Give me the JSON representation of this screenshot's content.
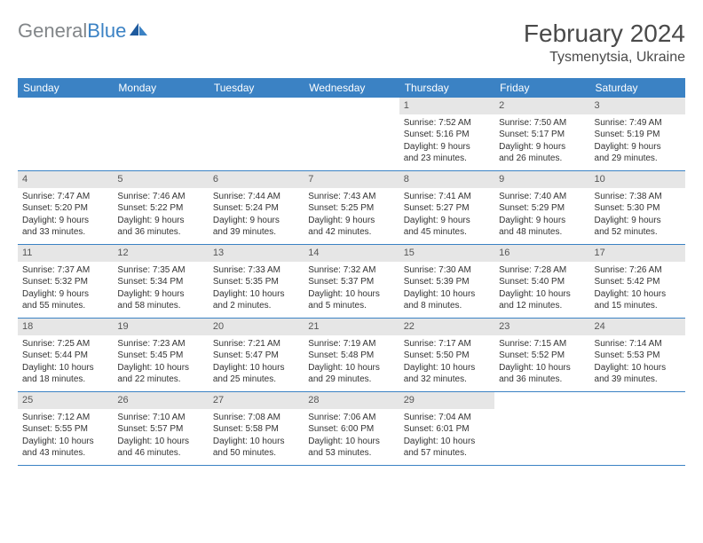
{
  "logo": {
    "part1": "General",
    "part2": "Blue"
  },
  "title": "February 2024",
  "location": "Tysmenytsia, Ukraine",
  "colors": {
    "header_bg": "#3b82c4",
    "header_text": "#ffffff",
    "daynum_bg": "#e6e6e6",
    "text": "#333333",
    "week_border": "#3b82c4"
  },
  "dow": [
    "Sunday",
    "Monday",
    "Tuesday",
    "Wednesday",
    "Thursday",
    "Friday",
    "Saturday"
  ],
  "weeks": [
    [
      {
        "n": "",
        "sr": "",
        "ss": "",
        "dl1": "",
        "dl2": ""
      },
      {
        "n": "",
        "sr": "",
        "ss": "",
        "dl1": "",
        "dl2": ""
      },
      {
        "n": "",
        "sr": "",
        "ss": "",
        "dl1": "",
        "dl2": ""
      },
      {
        "n": "",
        "sr": "",
        "ss": "",
        "dl1": "",
        "dl2": ""
      },
      {
        "n": "1",
        "sr": "Sunrise: 7:52 AM",
        "ss": "Sunset: 5:16 PM",
        "dl1": "Daylight: 9 hours",
        "dl2": "and 23 minutes."
      },
      {
        "n": "2",
        "sr": "Sunrise: 7:50 AM",
        "ss": "Sunset: 5:17 PM",
        "dl1": "Daylight: 9 hours",
        "dl2": "and 26 minutes."
      },
      {
        "n": "3",
        "sr": "Sunrise: 7:49 AM",
        "ss": "Sunset: 5:19 PM",
        "dl1": "Daylight: 9 hours",
        "dl2": "and 29 minutes."
      }
    ],
    [
      {
        "n": "4",
        "sr": "Sunrise: 7:47 AM",
        "ss": "Sunset: 5:20 PM",
        "dl1": "Daylight: 9 hours",
        "dl2": "and 33 minutes."
      },
      {
        "n": "5",
        "sr": "Sunrise: 7:46 AM",
        "ss": "Sunset: 5:22 PM",
        "dl1": "Daylight: 9 hours",
        "dl2": "and 36 minutes."
      },
      {
        "n": "6",
        "sr": "Sunrise: 7:44 AM",
        "ss": "Sunset: 5:24 PM",
        "dl1": "Daylight: 9 hours",
        "dl2": "and 39 minutes."
      },
      {
        "n": "7",
        "sr": "Sunrise: 7:43 AM",
        "ss": "Sunset: 5:25 PM",
        "dl1": "Daylight: 9 hours",
        "dl2": "and 42 minutes."
      },
      {
        "n": "8",
        "sr": "Sunrise: 7:41 AM",
        "ss": "Sunset: 5:27 PM",
        "dl1": "Daylight: 9 hours",
        "dl2": "and 45 minutes."
      },
      {
        "n": "9",
        "sr": "Sunrise: 7:40 AM",
        "ss": "Sunset: 5:29 PM",
        "dl1": "Daylight: 9 hours",
        "dl2": "and 48 minutes."
      },
      {
        "n": "10",
        "sr": "Sunrise: 7:38 AM",
        "ss": "Sunset: 5:30 PM",
        "dl1": "Daylight: 9 hours",
        "dl2": "and 52 minutes."
      }
    ],
    [
      {
        "n": "11",
        "sr": "Sunrise: 7:37 AM",
        "ss": "Sunset: 5:32 PM",
        "dl1": "Daylight: 9 hours",
        "dl2": "and 55 minutes."
      },
      {
        "n": "12",
        "sr": "Sunrise: 7:35 AM",
        "ss": "Sunset: 5:34 PM",
        "dl1": "Daylight: 9 hours",
        "dl2": "and 58 minutes."
      },
      {
        "n": "13",
        "sr": "Sunrise: 7:33 AM",
        "ss": "Sunset: 5:35 PM",
        "dl1": "Daylight: 10 hours",
        "dl2": "and 2 minutes."
      },
      {
        "n": "14",
        "sr": "Sunrise: 7:32 AM",
        "ss": "Sunset: 5:37 PM",
        "dl1": "Daylight: 10 hours",
        "dl2": "and 5 minutes."
      },
      {
        "n": "15",
        "sr": "Sunrise: 7:30 AM",
        "ss": "Sunset: 5:39 PM",
        "dl1": "Daylight: 10 hours",
        "dl2": "and 8 minutes."
      },
      {
        "n": "16",
        "sr": "Sunrise: 7:28 AM",
        "ss": "Sunset: 5:40 PM",
        "dl1": "Daylight: 10 hours",
        "dl2": "and 12 minutes."
      },
      {
        "n": "17",
        "sr": "Sunrise: 7:26 AM",
        "ss": "Sunset: 5:42 PM",
        "dl1": "Daylight: 10 hours",
        "dl2": "and 15 minutes."
      }
    ],
    [
      {
        "n": "18",
        "sr": "Sunrise: 7:25 AM",
        "ss": "Sunset: 5:44 PM",
        "dl1": "Daylight: 10 hours",
        "dl2": "and 18 minutes."
      },
      {
        "n": "19",
        "sr": "Sunrise: 7:23 AM",
        "ss": "Sunset: 5:45 PM",
        "dl1": "Daylight: 10 hours",
        "dl2": "and 22 minutes."
      },
      {
        "n": "20",
        "sr": "Sunrise: 7:21 AM",
        "ss": "Sunset: 5:47 PM",
        "dl1": "Daylight: 10 hours",
        "dl2": "and 25 minutes."
      },
      {
        "n": "21",
        "sr": "Sunrise: 7:19 AM",
        "ss": "Sunset: 5:48 PM",
        "dl1": "Daylight: 10 hours",
        "dl2": "and 29 minutes."
      },
      {
        "n": "22",
        "sr": "Sunrise: 7:17 AM",
        "ss": "Sunset: 5:50 PM",
        "dl1": "Daylight: 10 hours",
        "dl2": "and 32 minutes."
      },
      {
        "n": "23",
        "sr": "Sunrise: 7:15 AM",
        "ss": "Sunset: 5:52 PM",
        "dl1": "Daylight: 10 hours",
        "dl2": "and 36 minutes."
      },
      {
        "n": "24",
        "sr": "Sunrise: 7:14 AM",
        "ss": "Sunset: 5:53 PM",
        "dl1": "Daylight: 10 hours",
        "dl2": "and 39 minutes."
      }
    ],
    [
      {
        "n": "25",
        "sr": "Sunrise: 7:12 AM",
        "ss": "Sunset: 5:55 PM",
        "dl1": "Daylight: 10 hours",
        "dl2": "and 43 minutes."
      },
      {
        "n": "26",
        "sr": "Sunrise: 7:10 AM",
        "ss": "Sunset: 5:57 PM",
        "dl1": "Daylight: 10 hours",
        "dl2": "and 46 minutes."
      },
      {
        "n": "27",
        "sr": "Sunrise: 7:08 AM",
        "ss": "Sunset: 5:58 PM",
        "dl1": "Daylight: 10 hours",
        "dl2": "and 50 minutes."
      },
      {
        "n": "28",
        "sr": "Sunrise: 7:06 AM",
        "ss": "Sunset: 6:00 PM",
        "dl1": "Daylight: 10 hours",
        "dl2": "and 53 minutes."
      },
      {
        "n": "29",
        "sr": "Sunrise: 7:04 AM",
        "ss": "Sunset: 6:01 PM",
        "dl1": "Daylight: 10 hours",
        "dl2": "and 57 minutes."
      },
      {
        "n": "",
        "sr": "",
        "ss": "",
        "dl1": "",
        "dl2": ""
      },
      {
        "n": "",
        "sr": "",
        "ss": "",
        "dl1": "",
        "dl2": ""
      }
    ]
  ]
}
